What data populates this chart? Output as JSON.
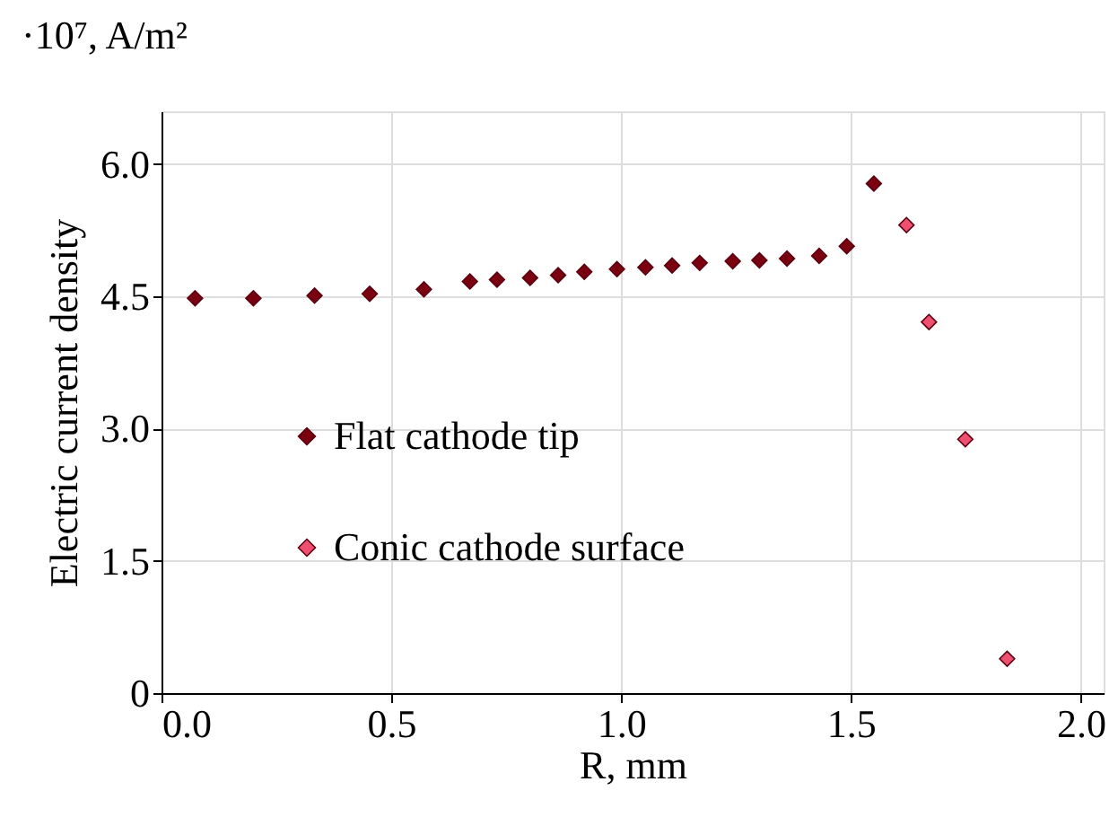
{
  "chart_data": {
    "type": "scatter",
    "xlabel": "R, mm",
    "ylabel": "Electric current density",
    "annotations": [
      "·10⁷, A/m²"
    ],
    "xlim": [
      0,
      2.05
    ],
    "ylim": [
      0,
      6.6
    ],
    "xticks": [
      {
        "value": 0,
        "label": "0.0"
      },
      {
        "value": 0.5,
        "label": "0.5"
      },
      {
        "value": 1,
        "label": "1.0"
      },
      {
        "value": 1.5,
        "label": "1.5"
      },
      {
        "value": 2,
        "label": "2.0"
      }
    ],
    "yticks": [
      0,
      {
        "value": 1.5,
        "label": "1.5"
      },
      {
        "value": 3,
        "label": "3.0"
      },
      {
        "value": 4.5,
        "label": "4.5"
      },
      {
        "value": 6,
        "label": "6.0"
      }
    ],
    "grid": true,
    "legend": "bottom left",
    "marker": "diamond",
    "series": [
      {
        "name": "Flat cathode tip",
        "color": "#7a0010",
        "x": [
          0.073,
          0.2,
          0.333,
          0.453,
          0.571,
          0.671,
          0.73,
          0.802,
          0.863,
          0.92,
          0.991,
          1.053,
          1.111,
          1.171,
          1.243,
          1.301,
          1.361,
          1.431,
          1.491,
          1.55
        ],
        "values": [
          4.48,
          4.48,
          4.51,
          4.53,
          4.58,
          4.67,
          4.69,
          4.71,
          4.74,
          4.78,
          4.81,
          4.83,
          4.85,
          4.88,
          4.9,
          4.91,
          4.93,
          4.96,
          5.07,
          5.78
        ]
      },
      {
        "name": "Conic  cathode surface",
        "color": "#f05070",
        "x": [
          1.621,
          1.67,
          1.749,
          1.84
        ],
        "values": [
          5.31,
          4.21,
          2.88,
          0.39
        ]
      }
    ]
  }
}
